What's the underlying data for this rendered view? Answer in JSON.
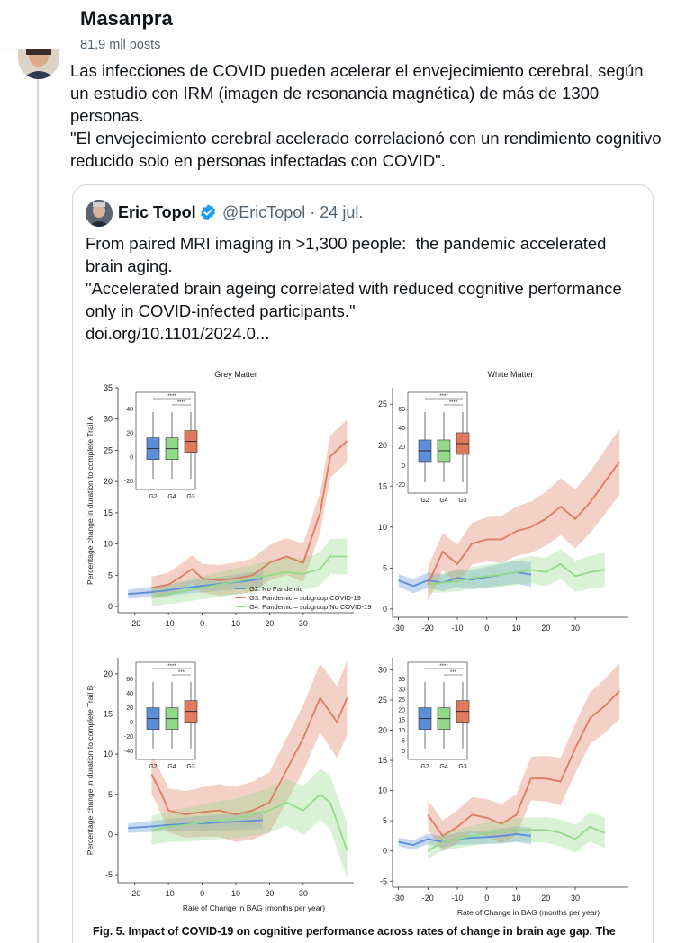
{
  "post": {
    "author": "Masanpra",
    "posts_count": "81,9 mil posts",
    "paragraphs": [
      "Las infecciones de COVID pueden acelerar el envejecimiento cerebral, según un estudio con IRM (imagen de resonancia magnética) de más de 1300 personas.",
      "\"El envejecimiento cerebral acelerado correlacionó con un rendimiento cognitivo reducido solo en personas infectadas con COVID\"."
    ]
  },
  "quote": {
    "name": "Eric Topol",
    "handle_date": "@EricTopol · 24 jul.",
    "paragraphs": [
      "From paired MRI imaging in >1,300 people:  the pandemic accelerated brain aging.",
      "\"Accelerated brain ageing correlated with reduced cognitive performance only in COVID-infected participants.\"",
      "doi.org/10.1101/2024.0..."
    ],
    "caption": "Fig. 5. Impact of COVID-19 on cognitive performance across rates of change in brain age gap. The"
  },
  "colors": {
    "g2": "#5b8fd9",
    "g3": "#e07a5f",
    "g4": "#93d98a",
    "verified": "#1d9bf0"
  },
  "chart_data": [
    {
      "type": "line",
      "panel": "top-left",
      "title": "Grey Matter",
      "ylabel": "Percentage change in duration to complete Trail A",
      "xlabel": "",
      "xticks": [
        -20,
        -10,
        0,
        10,
        20,
        30
      ],
      "yticks": [
        0,
        5,
        10,
        15,
        20,
        25,
        30,
        35
      ],
      "xlim": [
        -25,
        45
      ],
      "ylim": [
        -1,
        35
      ],
      "legend": [
        "G2: No Pandemic",
        "G3: Pandemic – subgroup COVID-19",
        "G4: Pandemic – subgroup No COVID-19"
      ],
      "series": [
        {
          "name": "G2: No Pandemic",
          "x": [
            -22,
            -15,
            -10,
            -5,
            0,
            5,
            10,
            15,
            18
          ],
          "y": [
            2,
            2.3,
            2.6,
            3.0,
            3.3,
            3.6,
            3.9,
            4.2,
            4.5
          ],
          "band": 1.2
        },
        {
          "name": "G3: Pandemic – subgroup COVID-19",
          "x": [
            -15,
            -10,
            -7,
            -3,
            0,
            5,
            10,
            15,
            20,
            25,
            30,
            35,
            38,
            43
          ],
          "y": [
            3,
            3.5,
            4.5,
            6,
            4.5,
            4.2,
            4.5,
            5,
            7,
            8,
            7,
            15,
            24,
            26.5
          ],
          "band": 3
        },
        {
          "name": "G4: Pandemic – subgroup No COVID-19",
          "x": [
            -15,
            -10,
            -5,
            0,
            5,
            10,
            15,
            20,
            25,
            30,
            35,
            38,
            43
          ],
          "y": [
            1.5,
            2,
            2.5,
            3,
            3.5,
            4,
            4.5,
            5,
            5.5,
            5.2,
            6,
            8,
            8
          ],
          "band": 2.5
        }
      ],
      "inset": {
        "yticks": [
          40,
          20,
          0,
          -20
        ],
        "groups": [
          "G2",
          "G4",
          "G3"
        ],
        "sig": [
          "****",
          "****"
        ]
      }
    },
    {
      "type": "line",
      "panel": "top-right",
      "title": "White Matter",
      "ylabel": "",
      "xlabel": "",
      "xticks": [
        -30,
        -20,
        -10,
        0,
        10,
        20,
        30
      ],
      "yticks": [
        0,
        5,
        10,
        15,
        20,
        25
      ],
      "xlim": [
        -32,
        48
      ],
      "ylim": [
        -1,
        27
      ],
      "series": [
        {
          "name": "G2: No Pandemic",
          "x": [
            -30,
            -25,
            -20,
            -15,
            -10,
            -5,
            0,
            5,
            10,
            15
          ],
          "y": [
            3.5,
            2.8,
            3.5,
            3.2,
            3.8,
            3.6,
            3.9,
            4.2,
            4.5,
            4.2
          ],
          "band": 1.3
        },
        {
          "name": "G3: Pandemic – subgroup COVID-19",
          "x": [
            -20,
            -15,
            -10,
            -5,
            0,
            5,
            10,
            15,
            20,
            25,
            30,
            35,
            40,
            45
          ],
          "y": [
            3,
            7,
            5.5,
            8,
            8.5,
            8.5,
            9.5,
            10,
            11,
            12.5,
            11,
            13,
            15.5,
            18
          ],
          "band": 3.5
        },
        {
          "name": "G4: Pandemic – subgroup No COVID-19",
          "x": [
            -20,
            -15,
            -10,
            -5,
            0,
            5,
            10,
            15,
            20,
            25,
            30,
            35,
            40
          ],
          "y": [
            3,
            3.2,
            3.4,
            3.8,
            4,
            4.2,
            4.5,
            4.8,
            4.5,
            5.5,
            4,
            4.5,
            4.8
          ],
          "band": 1.8
        }
      ],
      "inset": {
        "yticks": [
          60,
          40,
          20,
          0,
          -20
        ],
        "groups": [
          "G2",
          "G4",
          "G3"
        ],
        "sig": [
          "****",
          "****"
        ]
      }
    },
    {
      "type": "line",
      "panel": "bottom-left",
      "title": "",
      "ylabel": "Percentage change in duration to complete Trail B",
      "xlabel": "Rate of Change in BAG (months per year)",
      "xticks": [
        -20,
        -10,
        0,
        10,
        20,
        30
      ],
      "yticks": [
        -5,
        0,
        5,
        10,
        15,
        20
      ],
      "xlim": [
        -25,
        45
      ],
      "ylim": [
        -6,
        22
      ],
      "series": [
        {
          "name": "G2: No Pandemic",
          "x": [
            -22,
            -15,
            -10,
            -5,
            0,
            5,
            10,
            18
          ],
          "y": [
            0.8,
            1.0,
            1.2,
            1.3,
            1.4,
            1.5,
            1.6,
            1.8
          ],
          "band": 1
        },
        {
          "name": "G3: Pandemic – subgroup COVID-19",
          "x": [
            -15,
            -12,
            -10,
            -5,
            0,
            5,
            10,
            15,
            20,
            25,
            30,
            35,
            40,
            43
          ],
          "y": [
            7.5,
            5,
            3,
            2.5,
            2.8,
            3,
            2.5,
            3,
            4,
            8,
            12,
            17,
            14,
            17
          ],
          "band": 4
        },
        {
          "name": "G4: Pandemic – subgroup No COVID-19",
          "x": [
            -15,
            -10,
            -5,
            0,
            5,
            10,
            15,
            20,
            25,
            30,
            35,
            38,
            43
          ],
          "y": [
            0.5,
            1,
            1.2,
            1.5,
            1.8,
            2,
            2.5,
            3,
            4,
            3,
            5,
            4,
            -2
          ],
          "band": 3
        }
      ],
      "inset": {
        "yticks": [
          60,
          40,
          20,
          0,
          -20,
          -40
        ],
        "groups": [
          "G2",
          "G4",
          "G3"
        ],
        "sig": [
          "****",
          "***"
        ]
      }
    },
    {
      "type": "line",
      "panel": "bottom-right",
      "title": "",
      "ylabel": "",
      "xlabel": "Rate of Change in BAG (months per year)",
      "xticks": [
        -30,
        -20,
        -10,
        0,
        10,
        20,
        30
      ],
      "yticks": [
        -5,
        0,
        5,
        10,
        15,
        20,
        25,
        30
      ],
      "xlim": [
        -32,
        48
      ],
      "ylim": [
        -6,
        32
      ],
      "series": [
        {
          "name": "G2: No Pandemic",
          "x": [
            -30,
            -25,
            -20,
            -15,
            -10,
            -5,
            0,
            5,
            10,
            15
          ],
          "y": [
            1.5,
            1,
            2,
            1.5,
            2,
            2.2,
            2.3,
            2.5,
            2.8,
            2.5
          ],
          "band": 1.2
        },
        {
          "name": "G3: Pandemic – subgroup COVID-19",
          "x": [
            -20,
            -15,
            -10,
            -5,
            0,
            5,
            10,
            15,
            20,
            25,
            30,
            35,
            40,
            45
          ],
          "y": [
            6,
            2.5,
            4,
            6,
            5.5,
            4.5,
            6,
            12,
            12,
            11.5,
            17,
            22,
            24,
            26.5
          ],
          "band": 4
        },
        {
          "name": "G4: Pandemic – subgroup No COVID-19",
          "x": [
            -20,
            -15,
            -10,
            -5,
            0,
            5,
            10,
            15,
            20,
            25,
            30,
            35,
            40
          ],
          "y": [
            0,
            1.5,
            2,
            2.5,
            3,
            3.2,
            3.5,
            3.5,
            3.5,
            3,
            2,
            4,
            3
          ],
          "band": 2.2
        }
      ],
      "inset": {
        "yticks": [
          35,
          30,
          25,
          20,
          15,
          10,
          5,
          0
        ],
        "groups": [
          "G2",
          "G4",
          "G3"
        ],
        "sig": [
          "****",
          "***"
        ]
      }
    }
  ]
}
